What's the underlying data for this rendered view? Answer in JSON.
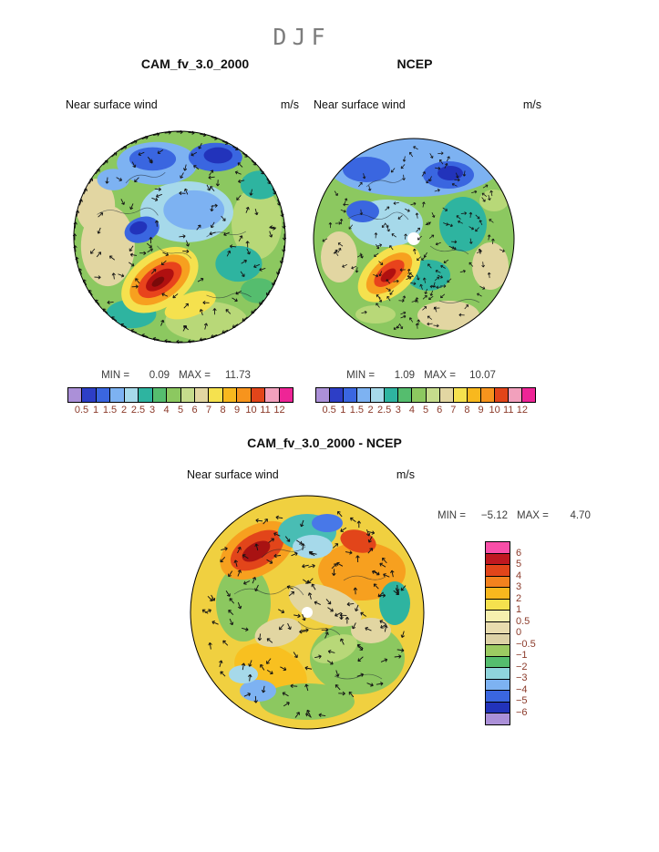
{
  "page_title": "DJF",
  "panels": {
    "cam": {
      "title": "CAM_fv_3.0_2000",
      "subtitle": "Near surface wind",
      "units": "m/s",
      "min_label": "MIN =",
      "min_value": "0.09",
      "max_label": "MAX =",
      "max_value": "11.73"
    },
    "ncep": {
      "title": "NCEP",
      "subtitle": "Near surface wind",
      "units": "m/s",
      "min_label": "MIN =",
      "min_value": "1.09",
      "max_label": "MAX =",
      "max_value": "10.07"
    },
    "diff": {
      "title": "CAM_fv_3.0_2000 - NCEP",
      "subtitle": "Near surface wind",
      "units": "m/s",
      "min_label": "MIN =",
      "min_value": "−5.12",
      "max_label": "MAX =",
      "max_value": "4.70"
    }
  },
  "colorbars": {
    "wind": {
      "ticks": [
        "0.5",
        "1",
        "1.5",
        "2",
        "2.5",
        "3",
        "4",
        "5",
        "6",
        "7",
        "8",
        "9",
        "10",
        "11",
        "12"
      ],
      "colors": [
        "#ab90d8",
        "#2d3ec6",
        "#3a66e0",
        "#7db2f2",
        "#a6d9ea",
        "#2eb4a0",
        "#55bd6e",
        "#8cc860",
        "#c6dc8c",
        "#e2d6a2",
        "#f5e14e",
        "#f8b81e",
        "#f7941d",
        "#e2451a",
        "#f2a0bc",
        "#ee2596"
      ]
    },
    "diff": {
      "ticks": [
        "6",
        "5",
        "4",
        "3",
        "2",
        "1",
        "0.5",
        "0",
        "−0.5",
        "−1",
        "−2",
        "−3",
        "−4",
        "−5",
        "−6"
      ],
      "colors": [
        "#f84fa8",
        "#c01820",
        "#e2451a",
        "#f3821e",
        "#f8b81e",
        "#f5e14e",
        "#f6efae",
        "#e8dcae",
        "#ddd2a6",
        "#9ccb62",
        "#55bd6e",
        "#8fd4dc",
        "#7db2f2",
        "#3a66e0",
        "#2233bb",
        "#ab90d8"
      ]
    }
  },
  "chart_data": [
    {
      "type": "heatmap",
      "title": "CAM_fv_3.0_2000",
      "season": "DJF",
      "variable": "Near surface wind",
      "units": "m/s",
      "projection": "north polar stereographic",
      "overlay": "wind vectors (arrows)",
      "min": 0.09,
      "max": 11.73,
      "contour_levels": [
        0.5,
        1,
        1.5,
        2,
        2.5,
        3,
        4,
        5,
        6,
        7,
        8,
        9,
        10,
        11,
        12
      ],
      "legend_position": "bottom"
    },
    {
      "type": "heatmap",
      "title": "NCEP",
      "season": "DJF",
      "variable": "Near surface wind",
      "units": "m/s",
      "projection": "north polar stereographic",
      "overlay": "wind vectors (arrows)",
      "min": 1.09,
      "max": 10.07,
      "contour_levels": [
        0.5,
        1,
        1.5,
        2,
        2.5,
        3,
        4,
        5,
        6,
        7,
        8,
        9,
        10,
        11,
        12
      ],
      "legend_position": "bottom"
    },
    {
      "type": "heatmap",
      "title": "CAM_fv_3.0_2000 - NCEP",
      "season": "DJF",
      "variable": "Near surface wind difference",
      "units": "m/s",
      "projection": "north polar stereographic",
      "overlay": "wind vector differences (arrows)",
      "min": -5.12,
      "max": 4.7,
      "contour_levels": [
        -6,
        -5,
        -4,
        -3,
        -2,
        -1,
        -0.5,
        0,
        0.5,
        1,
        2,
        3,
        4,
        5,
        6
      ],
      "legend_position": "right"
    }
  ]
}
